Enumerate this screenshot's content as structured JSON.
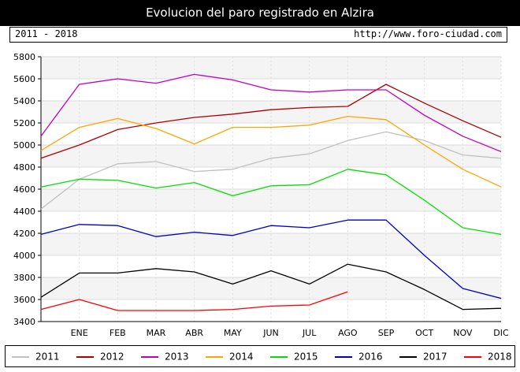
{
  "header": {
    "title": "Evolucion del paro registrado en Alzira",
    "range": "2011 - 2018",
    "url": "http://www.foro-ciudad.com"
  },
  "chart_data": {
    "type": "line",
    "title": "Evolucion del paro registrado en Alzira",
    "categories": [
      "",
      "ENE",
      "FEB",
      "MAR",
      "ABR",
      "MAY",
      "JUN",
      "JUL",
      "AGO",
      "SEP",
      "OCT",
      "NOV",
      "DIC"
    ],
    "ylim": [
      3400,
      5800
    ],
    "yticks": [
      3400,
      3600,
      3800,
      4000,
      4200,
      4400,
      4600,
      4800,
      5000,
      5200,
      5400,
      5600,
      5800
    ],
    "grid": true,
    "legend_position": "bottom",
    "series": [
      {
        "name": "2011",
        "color": "#c0c0c0",
        "values": [
          4420,
          4690,
          4830,
          4850,
          4760,
          4780,
          4880,
          4920,
          5040,
          5120,
          5040,
          4910,
          4880
        ]
      },
      {
        "name": "2012",
        "color": "#b00000",
        "values": [
          4880,
          5000,
          5140,
          5200,
          5250,
          5280,
          5320,
          5340,
          5350,
          5550,
          5380,
          5220,
          5070
        ]
      },
      {
        "name": "2013",
        "color": "#c000c0",
        "values": [
          5080,
          5550,
          5600,
          5560,
          5640,
          5590,
          5500,
          5480,
          5500,
          5500,
          5270,
          5080,
          4940
        ]
      },
      {
        "name": "2014",
        "color": "#ffa500",
        "values": [
          4950,
          5160,
          5240,
          5150,
          5010,
          5160,
          5160,
          5180,
          5260,
          5230,
          5000,
          4780,
          4620
        ]
      },
      {
        "name": "2015",
        "color": "#00e000",
        "values": [
          4620,
          4690,
          4680,
          4610,
          4660,
          4540,
          4630,
          4640,
          4780,
          4730,
          4500,
          4250,
          4190
        ]
      },
      {
        "name": "2016",
        "color": "#0000c0",
        "values": [
          4190,
          4280,
          4270,
          4170,
          4210,
          4180,
          4270,
          4250,
          4320,
          4320,
          4000,
          3700,
          3610
        ]
      },
      {
        "name": "2017",
        "color": "#000000",
        "values": [
          3620,
          3840,
          3840,
          3880,
          3850,
          3740,
          3860,
          3740,
          3920,
          3850,
          3690,
          3510,
          3520
        ]
      },
      {
        "name": "2018",
        "color": "#ff0000",
        "values": [
          3510,
          3600,
          3500,
          3500,
          3500,
          3510,
          3540,
          3550,
          3670,
          null,
          null,
          null,
          null
        ]
      }
    ]
  }
}
